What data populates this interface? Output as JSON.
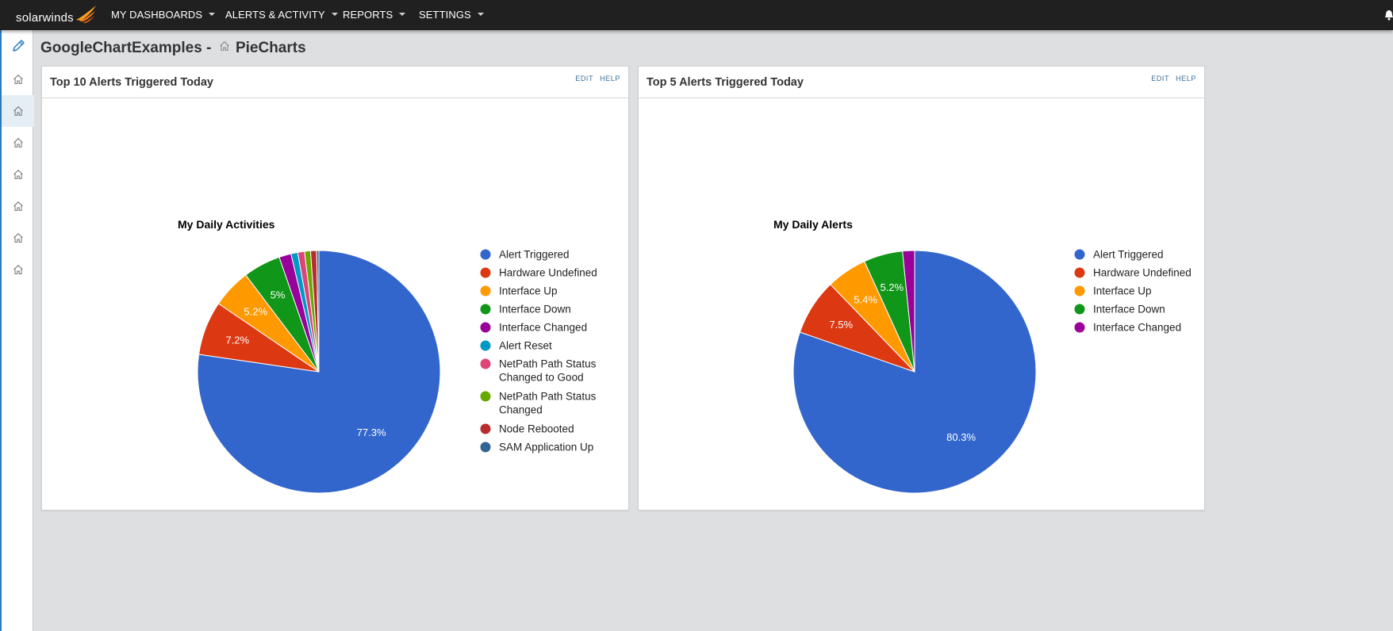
{
  "brand": {
    "logo_text": "solarwinds"
  },
  "nav": {
    "items": [
      {
        "label": "MY DASHBOARDS"
      },
      {
        "label": "ALERTS & ACTIVITY"
      },
      {
        "label": "REPORTS"
      },
      {
        "label": "SETTINGS"
      }
    ]
  },
  "breadcrumb": {
    "parent": "GoogleChartExamples",
    "separator": "-",
    "current": "PieCharts"
  },
  "panels": [
    {
      "title": "Top 10 Alerts Triggered Today",
      "edit_label": "EDIT",
      "help_label": "HELP"
    },
    {
      "title": "Top 5 Alerts Triggered Today",
      "edit_label": "EDIT",
      "help_label": "HELP"
    }
  ],
  "colors": {
    "accent": "#2a7bbd",
    "topbar": "#202020",
    "page_bg": "#dedfe1"
  },
  "chart_data": [
    {
      "type": "pie",
      "title": "My Daily Activities",
      "legend_position": "right",
      "slices": [
        {
          "label": "Alert Triggered",
          "value": 77.3,
          "color": "#3366cc",
          "show_label": true
        },
        {
          "label": "Hardware Undefined",
          "value": 7.2,
          "color": "#dc3912",
          "show_label": true
        },
        {
          "label": "Interface Up",
          "value": 5.2,
          "color": "#ff9900",
          "show_label": true
        },
        {
          "label": "Interface Down",
          "value": 5,
          "color": "#109618",
          "show_label": true
        },
        {
          "label": "Interface Changed",
          "value": 1.6,
          "color": "#990099",
          "show_label": false
        },
        {
          "label": "Alert Reset",
          "value": 0.9,
          "color": "#0099c6",
          "show_label": false
        },
        {
          "label": "NetPath Path Status Changed to Good",
          "value": 0.9,
          "color": "#dd4477",
          "show_label": false
        },
        {
          "label": "NetPath Path Status Changed",
          "value": 0.8,
          "color": "#66aa00",
          "show_label": false
        },
        {
          "label": "Node Rebooted",
          "value": 0.8,
          "color": "#b82e2e",
          "show_label": false
        },
        {
          "label": "SAM Application Up",
          "value": 0.3,
          "color": "#316395",
          "show_label": false
        }
      ]
    },
    {
      "type": "pie",
      "title": "My Daily Alerts",
      "legend_position": "right",
      "slices": [
        {
          "label": "Alert Triggered",
          "value": 80.3,
          "color": "#3366cc",
          "show_label": true
        },
        {
          "label": "Hardware Undefined",
          "value": 7.5,
          "color": "#dc3912",
          "show_label": true
        },
        {
          "label": "Interface Up",
          "value": 5.4,
          "color": "#ff9900",
          "show_label": true
        },
        {
          "label": "Interface Down",
          "value": 5.2,
          "color": "#109618",
          "show_label": true
        },
        {
          "label": "Interface Changed",
          "value": 1.6,
          "color": "#990099",
          "show_label": false
        }
      ]
    }
  ]
}
